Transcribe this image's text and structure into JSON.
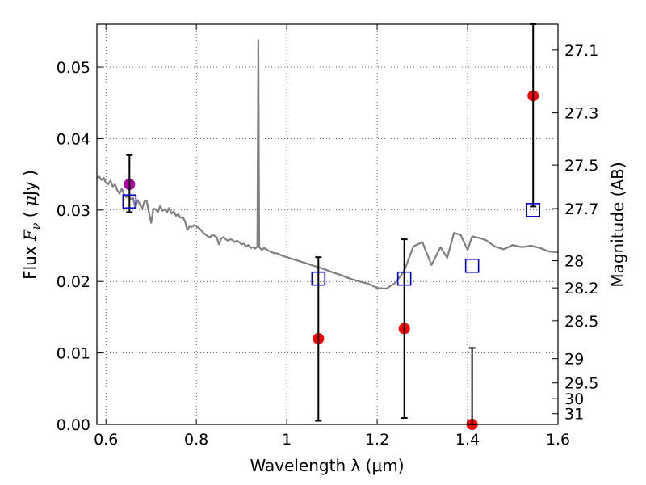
{
  "chart_data": {
    "type": "scatter",
    "xlabel": "Wavelength  λ (μm)",
    "ylabel": "Flux  F_ν  ( μJy )",
    "ylabel_right": "Magnitude (AB)",
    "xlim": [
      0.58,
      1.6
    ],
    "ylim": [
      0.0,
      0.056
    ],
    "grid": true,
    "x_ticks": [
      0.6,
      0.8,
      1.0,
      1.2,
      1.4,
      1.6
    ],
    "x_tick_labels": [
      "0.6",
      "0.8",
      "1",
      "1.2",
      "1.4",
      "1.6"
    ],
    "y_ticks": [
      0.0,
      0.01,
      0.02,
      0.03,
      0.04,
      0.05
    ],
    "y_tick_labels": [
      "0.00",
      "0.01",
      "0.02",
      "0.03",
      "0.04",
      "0.05"
    ],
    "right_ticks": [
      {
        "label": "27.1",
        "flux": 0.0524
      },
      {
        "label": "27.3",
        "flux": 0.0436
      },
      {
        "label": "27.5",
        "flux": 0.0363
      },
      {
        "label": "27.7",
        "flux": 0.0302
      },
      {
        "label": "28",
        "flux": 0.0229
      },
      {
        "label": "28.2",
        "flux": 0.0191
      },
      {
        "label": "28.5",
        "flux": 0.0145
      },
      {
        "label": "29",
        "flux": 0.0092
      },
      {
        "label": "29.5",
        "flux": 0.0058
      },
      {
        "label": "30",
        "flux": 0.0036
      },
      {
        "label": "31",
        "flux": 0.0015
      }
    ],
    "series": [
      {
        "kind": "line",
        "color": "#808080",
        "points": [
          [
            0.58,
            0.0345
          ],
          [
            0.585,
            0.0347
          ],
          [
            0.59,
            0.0342
          ],
          [
            0.595,
            0.0345
          ],
          [
            0.6,
            0.0338
          ],
          [
            0.605,
            0.0336
          ],
          [
            0.61,
            0.0341
          ],
          [
            0.615,
            0.0333
          ],
          [
            0.62,
            0.0336
          ],
          [
            0.625,
            0.0328
          ],
          [
            0.63,
            0.0323
          ],
          [
            0.635,
            0.033
          ],
          [
            0.64,
            0.0322
          ],
          [
            0.645,
            0.0318
          ],
          [
            0.65,
            0.032
          ],
          [
            0.655,
            0.0315
          ],
          [
            0.66,
            0.0317
          ],
          [
            0.665,
            0.0303
          ],
          [
            0.67,
            0.0314
          ],
          [
            0.675,
            0.0308
          ],
          [
            0.68,
            0.0302
          ],
          [
            0.685,
            0.0312
          ],
          [
            0.69,
            0.0313
          ],
          [
            0.695,
            0.0297
          ],
          [
            0.7,
            0.0282
          ],
          [
            0.705,
            0.0302
          ],
          [
            0.71,
            0.0301
          ],
          [
            0.715,
            0.0297
          ],
          [
            0.72,
            0.0306
          ],
          [
            0.725,
            0.0299
          ],
          [
            0.73,
            0.0301
          ],
          [
            0.735,
            0.0297
          ],
          [
            0.74,
            0.0303
          ],
          [
            0.745,
            0.0295
          ],
          [
            0.75,
            0.0298
          ],
          [
            0.755,
            0.0292
          ],
          [
            0.76,
            0.0294
          ],
          [
            0.765,
            0.0289
          ],
          [
            0.77,
            0.029
          ],
          [
            0.775,
            0.0284
          ],
          [
            0.78,
            0.0272
          ],
          [
            0.785,
            0.0278
          ],
          [
            0.79,
            0.0276
          ],
          [
            0.795,
            0.0279
          ],
          [
            0.8,
            0.0277
          ],
          [
            0.805,
            0.0275
          ],
          [
            0.81,
            0.0272
          ],
          [
            0.815,
            0.0268
          ],
          [
            0.82,
            0.0266
          ],
          [
            0.825,
            0.0263
          ],
          [
            0.83,
            0.0262
          ],
          [
            0.835,
            0.0265
          ],
          [
            0.84,
            0.0264
          ],
          [
            0.845,
            0.0262
          ],
          [
            0.85,
            0.0252
          ],
          [
            0.855,
            0.026
          ],
          [
            0.86,
            0.0262
          ],
          [
            0.865,
            0.0259
          ],
          [
            0.87,
            0.0257
          ],
          [
            0.875,
            0.0259
          ],
          [
            0.88,
            0.0258
          ],
          [
            0.885,
            0.0255
          ],
          [
            0.89,
            0.0257
          ],
          [
            0.895,
            0.0255
          ],
          [
            0.9,
            0.0252
          ],
          [
            0.905,
            0.0253
          ],
          [
            0.91,
            0.0249
          ],
          [
            0.915,
            0.0251
          ],
          [
            0.92,
            0.0247
          ],
          [
            0.925,
            0.0248
          ],
          [
            0.93,
            0.0246
          ],
          [
            0.935,
            0.0249
          ],
          [
            0.937,
            0.0538
          ],
          [
            0.939,
            0.0248
          ],
          [
            0.945,
            0.0244
          ],
          [
            0.95,
            0.0247
          ],
          [
            0.96,
            0.0243
          ],
          [
            0.97,
            0.024
          ],
          [
            0.98,
            0.0239
          ],
          [
            0.99,
            0.0236
          ],
          [
            1.0,
            0.0234
          ],
          [
            1.02,
            0.023
          ],
          [
            1.04,
            0.0226
          ],
          [
            1.06,
            0.0222
          ],
          [
            1.08,
            0.0218
          ],
          [
            1.1,
            0.0213
          ],
          [
            1.12,
            0.0209
          ],
          [
            1.14,
            0.0204
          ],
          [
            1.16,
            0.02
          ],
          [
            1.18,
            0.0197
          ],
          [
            1.2,
            0.0191
          ],
          [
            1.22,
            0.019
          ],
          [
            1.24,
            0.0198
          ],
          [
            1.26,
            0.0215
          ],
          [
            1.28,
            0.0249
          ],
          [
            1.3,
            0.0255
          ],
          [
            1.32,
            0.0223
          ],
          [
            1.34,
            0.0248
          ],
          [
            1.355,
            0.0233
          ],
          [
            1.37,
            0.0268
          ],
          [
            1.385,
            0.0265
          ],
          [
            1.4,
            0.0244
          ],
          [
            1.41,
            0.0263
          ],
          [
            1.425,
            0.0261
          ],
          [
            1.44,
            0.0258
          ],
          [
            1.46,
            0.0249
          ],
          [
            1.48,
            0.0245
          ],
          [
            1.5,
            0.0251
          ],
          [
            1.52,
            0.0248
          ],
          [
            1.54,
            0.025
          ],
          [
            1.56,
            0.0247
          ],
          [
            1.58,
            0.0242
          ],
          [
            1.6,
            0.0241
          ]
        ]
      },
      {
        "kind": "squares",
        "color": "#0000cc",
        "points": [
          [
            0.652,
            0.0312
          ],
          [
            1.07,
            0.0204
          ],
          [
            1.26,
            0.0204
          ],
          [
            1.41,
            0.0222
          ],
          [
            1.545,
            0.03
          ]
        ]
      },
      {
        "kind": "circles",
        "color": "#ff0000",
        "points": [
          [
            1.07,
            0.012
          ],
          [
            1.26,
            0.0134
          ],
          [
            1.41,
            0.0
          ],
          [
            1.545,
            0.046
          ]
        ]
      },
      {
        "kind": "circles",
        "color": "#aa00aa",
        "points": [
          [
            0.652,
            0.0336
          ]
        ]
      },
      {
        "kind": "errorbars",
        "color": "#000000",
        "bars": [
          [
            0.652,
            0.0297,
            0.0377
          ],
          [
            1.07,
            0.0005,
            0.0234
          ],
          [
            1.26,
            0.0009,
            0.0259
          ],
          [
            1.41,
            0.0,
            0.0107
          ],
          [
            1.545,
            0.0305,
            0.056
          ]
        ]
      }
    ]
  }
}
